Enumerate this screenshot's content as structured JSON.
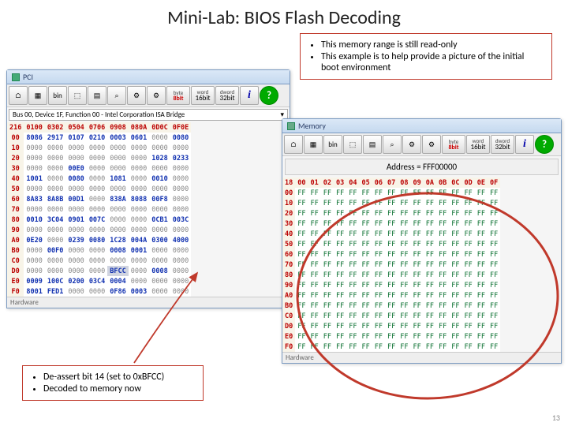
{
  "title": "Mini-Lab: BIOS Flash Decoding",
  "page_number": "13",
  "callout_top": {
    "items": [
      "This memory range is still read-only",
      "This example is to help provide a picture of the initial boot environment"
    ]
  },
  "callout_bottom": {
    "items": [
      "De-assert bit 14 (set to 0xBFCC)",
      "Decoded to memory now"
    ]
  },
  "pci": {
    "title": "PCI",
    "device": "Bus 00, Device 1F, Function 00 - Intel Corporation ISA Bridge",
    "cols": [
      "0100",
      "0302",
      "0504",
      "0706",
      "0908",
      "080A",
      "0D0C",
      "0F0E"
    ],
    "rows": [
      {
        "h": "216",
        "c": "hdr"
      },
      {
        "h": "00",
        "v": [
          "8086",
          "2917",
          "0107",
          "0210",
          "0003",
          "0601",
          "0000",
          "0080"
        ],
        "s": [
          "nav",
          "nav",
          "nav",
          "nav",
          "nav",
          "nav",
          "zero",
          "nav"
        ]
      },
      {
        "h": "10",
        "v": [
          "0000",
          "0000",
          "0000",
          "0000",
          "0000",
          "0000",
          "0000",
          "0000"
        ],
        "s": [
          "zero",
          "zero",
          "zero",
          "zero",
          "zero",
          "zero",
          "zero",
          "zero"
        ]
      },
      {
        "h": "20",
        "v": [
          "0000",
          "0000",
          "0000",
          "0000",
          "0000",
          "0000",
          "1028",
          "0233"
        ],
        "s": [
          "zero",
          "zero",
          "zero",
          "zero",
          "zero",
          "zero",
          "nav",
          "nav"
        ]
      },
      {
        "h": "30",
        "v": [
          "0000",
          "0000",
          "00E0",
          "0000",
          "0000",
          "0000",
          "0000",
          "0000"
        ],
        "s": [
          "zero",
          "zero",
          "nav",
          "zero",
          "zero",
          "zero",
          "zero",
          "zero"
        ]
      },
      {
        "h": "40",
        "v": [
          "1001",
          "0000",
          "0080",
          "0000",
          "1081",
          "0000",
          "0010",
          "0000"
        ],
        "s": [
          "nav",
          "zero",
          "nav",
          "zero",
          "nav",
          "zero",
          "nav",
          "zero"
        ]
      },
      {
        "h": "50",
        "v": [
          "0000",
          "0000",
          "0000",
          "0000",
          "0000",
          "0000",
          "0000",
          "0000"
        ],
        "s": [
          "zero",
          "zero",
          "zero",
          "zero",
          "zero",
          "zero",
          "zero",
          "zero"
        ]
      },
      {
        "h": "60",
        "v": [
          "8A83",
          "8A8B",
          "00D1",
          "0000",
          "838A",
          "8088",
          "00F8",
          "0000"
        ],
        "s": [
          "nav",
          "nav",
          "nav",
          "zero",
          "nav",
          "nav",
          "nav",
          "zero"
        ]
      },
      {
        "h": "70",
        "v": [
          "0000",
          "0000",
          "0000",
          "0000",
          "0000",
          "0000",
          "0000",
          "0000"
        ],
        "s": [
          "zero",
          "zero",
          "zero",
          "zero",
          "zero",
          "zero",
          "zero",
          "zero"
        ]
      },
      {
        "h": "80",
        "v": [
          "0010",
          "3C04",
          "0901",
          "007C",
          "0000",
          "0000",
          "0CB1",
          "003C"
        ],
        "s": [
          "nav",
          "nav",
          "nav",
          "nav",
          "zero",
          "zero",
          "nav",
          "nav"
        ]
      },
      {
        "h": "90",
        "v": [
          "0000",
          "0000",
          "0000",
          "0000",
          "0000",
          "0000",
          "0000",
          "0000"
        ],
        "s": [
          "zero",
          "zero",
          "zero",
          "zero",
          "zero",
          "zero",
          "zero",
          "zero"
        ]
      },
      {
        "h": "A0",
        "v": [
          "0E20",
          "0000",
          "0239",
          "0080",
          "1C28",
          "004A",
          "0300",
          "4000"
        ],
        "s": [
          "nav",
          "zero",
          "nav",
          "nav",
          "nav",
          "nav",
          "nav",
          "nav"
        ]
      },
      {
        "h": "B0",
        "v": [
          "0000",
          "00F0",
          "0000",
          "0000",
          "0008",
          "0001",
          "0000",
          "0000"
        ],
        "s": [
          "zero",
          "nav",
          "zero",
          "zero",
          "nav",
          "nav",
          "zero",
          "zero"
        ]
      },
      {
        "h": "C0",
        "v": [
          "0000",
          "0000",
          "0000",
          "0000",
          "0000",
          "0000",
          "0000",
          "0000"
        ],
        "s": [
          "zero",
          "zero",
          "zero",
          "zero",
          "zero",
          "zero",
          "zero",
          "zero"
        ]
      },
      {
        "h": "D0",
        "v": [
          "0000",
          "0000",
          "0000",
          "0000",
          "BFCC",
          "0000",
          "0008",
          "0000"
        ],
        "s": [
          "zero",
          "zero",
          "zero",
          "zero",
          "hl nav",
          "zero",
          "nav",
          "zero"
        ],
        "hl": 4
      },
      {
        "h": "E0",
        "v": [
          "0009",
          "100C",
          "0200",
          "03C4",
          "0004",
          "0000",
          "0000",
          "0000"
        ],
        "s": [
          "nav",
          "nav",
          "nav",
          "nav",
          "nav",
          "zero",
          "zero",
          "zero"
        ]
      },
      {
        "h": "F0",
        "v": [
          "8001",
          "FED1",
          "0000",
          "0000",
          "0F86",
          "0003",
          "0000",
          "0000"
        ],
        "s": [
          "nav",
          "nav",
          "zero",
          "zero",
          "nav",
          "nav",
          "zero",
          "zero"
        ]
      }
    ],
    "hardware": "Hardware"
  },
  "mem": {
    "title": "Memory",
    "address_label": "Address = FFF00000",
    "cols": [
      "00",
      "01",
      "02",
      "03",
      "04",
      "05",
      "06",
      "07",
      "08",
      "09",
      "0A",
      "0B",
      "0C",
      "0D",
      "0E",
      "0F"
    ],
    "rowh": [
      "00",
      "10",
      "20",
      "30",
      "40",
      "50",
      "60",
      "70",
      "80",
      "90",
      "A0",
      "B0",
      "C0",
      "D0",
      "E0",
      "F0"
    ],
    "first_col_header": "18",
    "cell": "FF",
    "hardware": "Hardware"
  },
  "toolbar_labels": {
    "byte": {
      "t": "byte",
      "b": "8bit"
    },
    "word": {
      "t": "word",
      "b": "16bit"
    },
    "dword": {
      "t": "dword",
      "b": "32bit"
    }
  },
  "colors": {
    "callout_border": "#c0392b",
    "green_text": "#0a7030",
    "nav_text": "#1030b0",
    "red_hdr": "#b00"
  }
}
